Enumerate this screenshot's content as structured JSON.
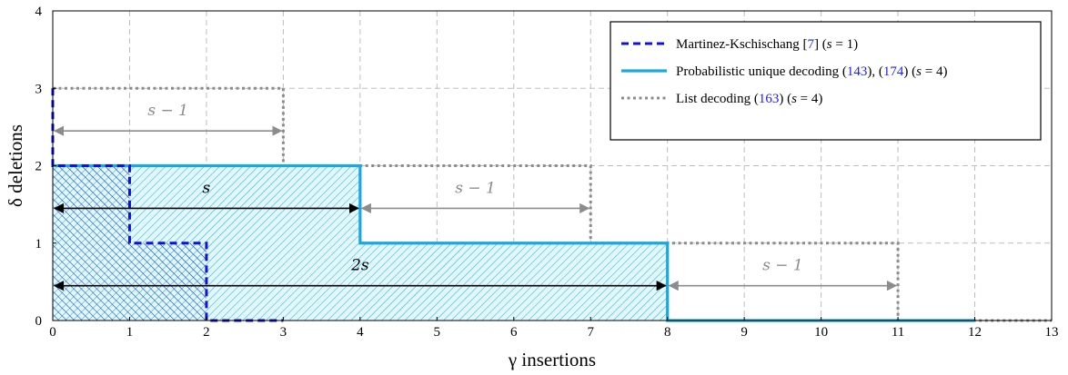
{
  "chart_data": {
    "type": "line",
    "xlabel": "γ insertions",
    "ylabel": "δ deletions",
    "xlim": [
      0,
      13
    ],
    "ylim": [
      0,
      4
    ],
    "xticks": [
      "0",
      "1",
      "2",
      "3",
      "4",
      "5",
      "6",
      "7",
      "8",
      "9",
      "10",
      "11",
      "12",
      "13"
    ],
    "yticks": [
      "0",
      "1",
      "2",
      "3",
      "4"
    ],
    "grid": true,
    "legend_position": "top-right",
    "series": [
      {
        "key": "mk",
        "color": "#1010e0",
        "style": "dashed",
        "legend": [
          "Martinez-Kschischang [",
          "7",
          "] (",
          "s",
          " = 1)"
        ],
        "x": [
          0,
          0,
          1,
          1,
          2,
          2,
          3
        ],
        "y": [
          3,
          2,
          2,
          1,
          1,
          0,
          0
        ]
      },
      {
        "key": "prob",
        "color": "#1aa8df",
        "style": "solid",
        "legend": [
          "Probabilistic unique decoding (",
          "143",
          "), (",
          "174",
          ") (",
          "s",
          " = 4)"
        ],
        "x": [
          0,
          4,
          4,
          8,
          8,
          12
        ],
        "y": [
          2,
          2,
          1,
          1,
          0,
          0
        ]
      },
      {
        "key": "list",
        "color": "#8c8c8c",
        "style": "dotted",
        "legend": [
          "List decoding (",
          "163",
          ") (",
          "s",
          " = 4)"
        ],
        "x": [
          0,
          3,
          3,
          7,
          7,
          11,
          11,
          13
        ],
        "y": [
          3,
          3,
          2,
          2,
          1,
          1,
          0,
          0
        ]
      }
    ],
    "annotations": [
      {
        "text": "s − 1",
        "color": "#8c8c8c",
        "x1": 0,
        "x2": 3,
        "y": 2.45,
        "ty": 2.65
      },
      {
        "text": "s",
        "color": "#000000",
        "x1": 0,
        "x2": 4,
        "y": 1.45,
        "ty": 1.65
      },
      {
        "text": "s − 1",
        "color": "#8c8c8c",
        "x1": 4,
        "x2": 7,
        "y": 1.45,
        "ty": 1.65
      },
      {
        "text": "2s",
        "color": "#000000",
        "x1": 0,
        "x2": 8,
        "y": 0.45,
        "ty": 0.65
      },
      {
        "text": "s − 1",
        "color": "#8c8c8c",
        "x1": 8,
        "x2": 11,
        "y": 0.45,
        "ty": 0.65
      }
    ]
  }
}
